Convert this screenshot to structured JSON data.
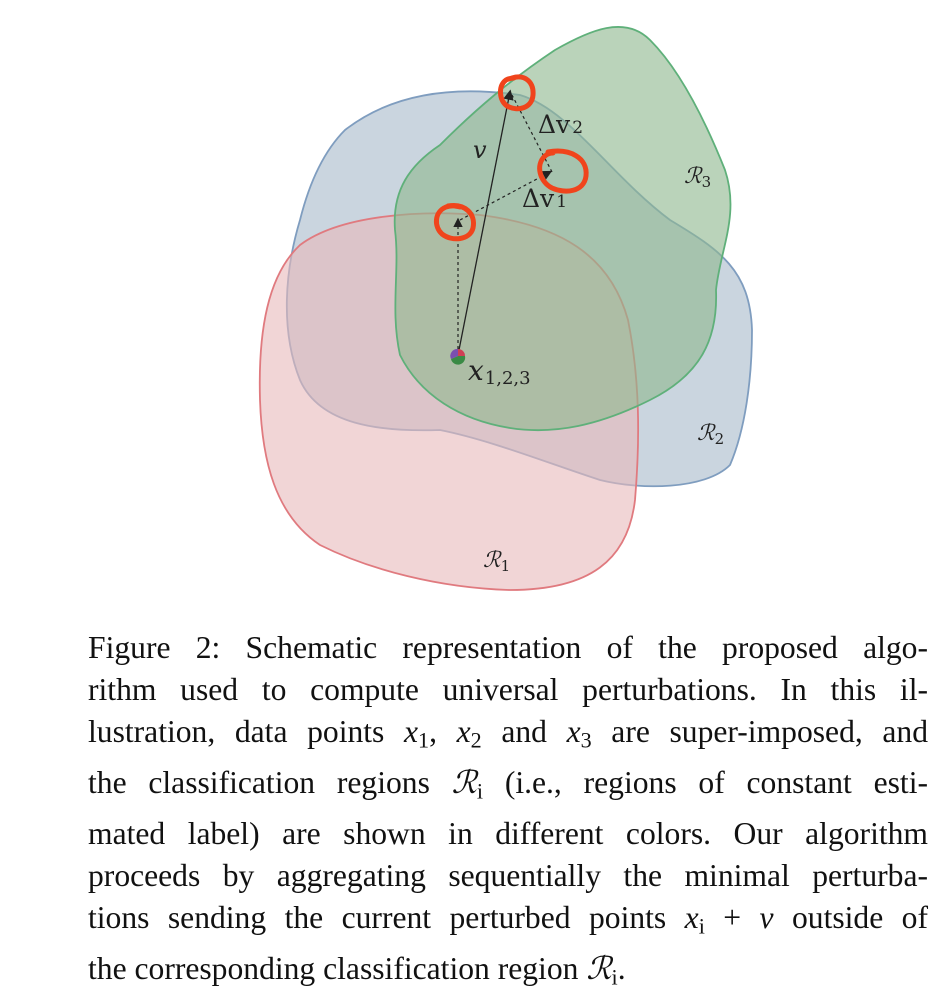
{
  "figure": {
    "labels": {
      "v": "v",
      "dv1": "Δv",
      "dv1_sub": "1",
      "dv2": "Δv",
      "dv2_sub": "2",
      "x": "x",
      "x_sub": "1,2,3",
      "r1": "ℛ",
      "r1_sub": "1",
      "r2": "ℛ",
      "r2_sub": "2",
      "r3": "ℛ",
      "r3_sub": "3"
    },
    "colors": {
      "region1_fill": "#e8b9bb",
      "region1_stroke": "#e07a7f",
      "region2_fill": "#a9bccb",
      "region2_stroke": "#7f9dbf",
      "region3_fill": "#8fb88f",
      "region3_stroke": "#5fb07a",
      "annotation": "#f0441c"
    }
  },
  "caption": {
    "l1": "Figure 2:  Schematic representation of the proposed algo-",
    "l2": "rithm used to compute universal perturbations.  In this il-",
    "l3_a": "lustration, data points ",
    "l3_x": "x",
    "l3_1": "1",
    "l3_c": ", ",
    "l3_x2": "x",
    "l3_2": "2",
    "l3_and": " and ",
    "l3_x3": "x",
    "l3_3": "3",
    "l3_b": " are super-imposed, and",
    "l4_a": "the classification regions ",
    "l4_r": "ℛ",
    "l4_i": "i",
    "l4_b": " (i.e., regions of constant esti-",
    "l5": "mated label) are shown in different colors.  Our algorithm",
    "l6": "proceeds by aggregating sequentially the minimal perturba-",
    "l7_a": "tions sending the current perturbed points ",
    "l7_x": "x",
    "l7_i": "i",
    "l7_plus": " + ",
    "l7_v": "v",
    "l7_b": " outside of",
    "l8_a": "the corresponding classification region ",
    "l8_r": "ℛ",
    "l8_i": "i",
    "l8_b": "."
  }
}
